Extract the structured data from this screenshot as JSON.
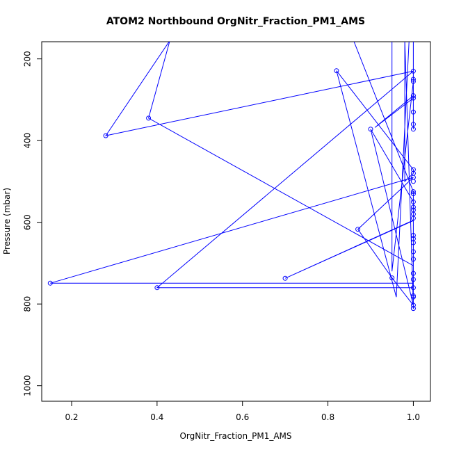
{
  "chart_data": {
    "type": "line",
    "title": "ATOM2 Northbound OrgNitr_Fraction_PM1_AMS",
    "xlabel": "OrgNitr_Fraction_PM1_AMS",
    "ylabel": "Pressure (mbar)",
    "xlim": [
      0.13,
      1.04
    ],
    "ylim": [
      1038,
      158
    ],
    "y_reversed": true,
    "x_ticks": [
      0.2,
      0.4,
      0.6,
      0.8,
      1.0
    ],
    "x_tick_labels": [
      "0.2",
      "0.4",
      "0.6",
      "0.8",
      "1.0"
    ],
    "y_ticks": [
      200,
      400,
      600,
      800,
      1000
    ],
    "y_tick_labels": [
      "200",
      "400",
      "600",
      "800",
      "1000"
    ],
    "grid": false,
    "legend": "none",
    "series_color": "#0000ff",
    "series": [
      {
        "points": [
          [
            1.0,
            811
          ],
          [
            1.0,
            803
          ],
          [
            0.95,
            736
          ],
          [
            0.87,
            617
          ],
          [
            1.0,
            490
          ],
          [
            0.15,
            749
          ],
          [
            1.0,
            749
          ],
          [
            1.0,
            760
          ],
          [
            0.4,
            760
          ],
          [
            1.0,
            230
          ],
          [
            0.28,
            388
          ],
          [
            0.43,
            155
          ],
          [
            0.38,
            345
          ],
          [
            1.0,
            706
          ],
          [
            1.0,
            596
          ],
          [
            0.7,
            737
          ],
          [
            1.0,
            595
          ],
          [
            1.0,
            570
          ],
          [
            1.0,
            550
          ],
          [
            0.9,
            372
          ],
          [
            1.0,
            803
          ],
          [
            0.98,
            155
          ],
          [
            0.98,
            500
          ],
          [
            1.0,
            480
          ],
          [
            1.0,
            471
          ],
          [
            0.82,
            229
          ],
          [
            0.96,
            783
          ],
          [
            0.99,
            155
          ],
          [
            1.0,
            155
          ],
          [
            1.0,
            290
          ],
          [
            0.91,
            368
          ],
          [
            1.0,
            296
          ],
          [
            1.0,
            330
          ],
          [
            1.0,
            360
          ],
          [
            1.0,
            372
          ],
          [
            1.0,
            250
          ],
          [
            1.0,
            255
          ],
          [
            0.95,
            720
          ],
          [
            0.95,
            155
          ],
          [
            0.925,
            155
          ],
          [
            0.88,
            155
          ],
          [
            0.86,
            155
          ],
          [
            1.0,
            525
          ],
          [
            1.0,
            530
          ],
          [
            1.0,
            563
          ],
          [
            1.0,
            580
          ],
          [
            1.0,
            590
          ],
          [
            1.0,
            632
          ],
          [
            1.0,
            640
          ],
          [
            1.0,
            650
          ],
          [
            1.0,
            672
          ],
          [
            1.0,
            690
          ],
          [
            1.0,
            725
          ],
          [
            1.0,
            740
          ],
          [
            1.0,
            760
          ],
          [
            1.0,
            780
          ],
          [
            1.0,
            783
          ],
          [
            1.0,
            785
          ],
          [
            1.0,
            805
          ],
          [
            1.0,
            812
          ]
        ]
      }
    ],
    "markers": [
      [
        0.82,
        229
      ],
      [
        0.28,
        388
      ],
      [
        0.38,
        345
      ],
      [
        0.9,
        372
      ],
      [
        0.87,
        617
      ],
      [
        0.7,
        737
      ],
      [
        0.95,
        736
      ],
      [
        0.15,
        749
      ],
      [
        0.4,
        760
      ],
      [
        1.0,
        230
      ],
      [
        1.0,
        250
      ],
      [
        1.0,
        255
      ],
      [
        1.0,
        290
      ],
      [
        1.0,
        296
      ],
      [
        1.0,
        330
      ],
      [
        1.0,
        360
      ],
      [
        1.0,
        372
      ],
      [
        1.0,
        471
      ],
      [
        1.0,
        480
      ],
      [
        1.0,
        490
      ],
      [
        1.0,
        500
      ],
      [
        1.0,
        525
      ],
      [
        1.0,
        530
      ],
      [
        1.0,
        550
      ],
      [
        1.0,
        563
      ],
      [
        1.0,
        570
      ],
      [
        1.0,
        580
      ],
      [
        1.0,
        590
      ],
      [
        1.0,
        632
      ],
      [
        1.0,
        640
      ],
      [
        1.0,
        650
      ],
      [
        1.0,
        672
      ],
      [
        1.0,
        690
      ],
      [
        1.0,
        725
      ],
      [
        1.0,
        740
      ],
      [
        1.0,
        760
      ],
      [
        1.0,
        780
      ],
      [
        1.0,
        783
      ],
      [
        1.0,
        803
      ],
      [
        1.0,
        811
      ]
    ]
  }
}
